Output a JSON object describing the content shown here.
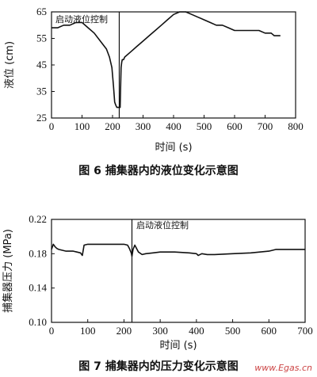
{
  "chart_data": [
    {
      "type": "line",
      "caption": "图 6   捕集器内的液位变化示意图",
      "xlabel": "时间 (s)",
      "ylabel": "液位 (cm)",
      "xlim": [
        0,
        800
      ],
      "ylim": [
        25,
        65
      ],
      "xticks": [
        0,
        100,
        200,
        300,
        400,
        500,
        600,
        700,
        800
      ],
      "yticks": [
        25,
        35,
        45,
        55,
        65
      ],
      "annotation": {
        "text": "启动液位控制",
        "x": 222
      },
      "series": [
        {
          "x": [
            0,
            20,
            40,
            60,
            80,
            100,
            120,
            140,
            160,
            180,
            190,
            198,
            203,
            207,
            210,
            214,
            218,
            225,
            228,
            230,
            232,
            236,
            240,
            260,
            280,
            300,
            320,
            340,
            360,
            380,
            400,
            420,
            430,
            440,
            460,
            480,
            500,
            520,
            540,
            560,
            580,
            600,
            620,
            640,
            660,
            680,
            700,
            720,
            730,
            740,
            750
          ],
          "y": [
            59,
            59,
            60,
            60,
            61,
            61,
            59,
            57,
            54,
            51,
            48,
            44,
            37,
            31,
            30,
            29,
            29,
            29,
            44,
            46,
            47,
            47,
            48,
            50,
            52,
            54,
            56,
            58,
            60,
            62,
            64,
            65,
            65,
            65,
            64,
            63,
            62,
            61,
            60,
            60,
            59,
            58,
            58,
            58,
            58,
            58,
            57,
            57,
            56,
            56,
            56
          ]
        }
      ]
    },
    {
      "type": "line",
      "caption": "图 7   捕集器内的压力变化示意图",
      "xlabel": "时间 (s)",
      "ylabel": "捕集器压力 (MPa)",
      "xlim": [
        0,
        700
      ],
      "ylim": [
        0.1,
        0.22
      ],
      "xticks": [
        0,
        100,
        200,
        300,
        400,
        500,
        600,
        700
      ],
      "yticks": [
        0.1,
        0.14,
        0.18,
        0.22
      ],
      "ytick_labels": [
        "0.10",
        "0.14",
        "0.18",
        "0.22"
      ],
      "annotation": {
        "text": "启动液位控制",
        "x": 222
      },
      "series": [
        {
          "x": [
            0,
            5,
            10,
            15,
            20,
            30,
            40,
            60,
            70,
            80,
            85,
            90,
            100,
            120,
            150,
            180,
            200,
            210,
            215,
            220,
            222,
            225,
            230,
            240,
            250,
            260,
            280,
            300,
            340,
            380,
            400,
            405,
            415,
            430,
            450,
            500,
            550,
            600,
            620,
            650,
            680,
            700
          ],
          "y": [
            0.185,
            0.191,
            0.188,
            0.186,
            0.185,
            0.184,
            0.183,
            0.183,
            0.182,
            0.181,
            0.178,
            0.19,
            0.191,
            0.191,
            0.191,
            0.191,
            0.191,
            0.19,
            0.186,
            0.181,
            0.177,
            0.185,
            0.19,
            0.182,
            0.179,
            0.18,
            0.181,
            0.182,
            0.182,
            0.181,
            0.18,
            0.178,
            0.18,
            0.179,
            0.179,
            0.18,
            0.181,
            0.183,
            0.185,
            0.185,
            0.185,
            0.185
          ]
        }
      ]
    }
  ],
  "watermark": "www.Egas.cn"
}
